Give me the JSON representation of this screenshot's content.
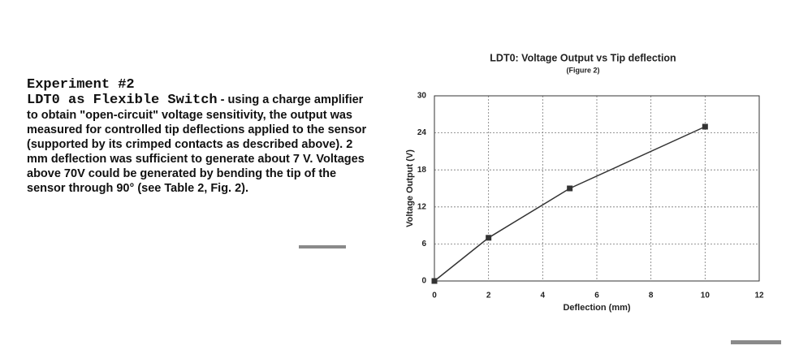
{
  "experiment": {
    "heading": "Experiment #2",
    "subheading": "LDT0 as Flexible Switch",
    "body": " - using a charge amplifier to obtain \"open-circuit\" voltage sensitivity, the output was measured for controlled tip deflections applied to the sensor (supported by its crimped contacts as described above). 2 mm deflection was sufficient to generate about 7 V. Voltages above 70V could be generated by bending the tip of the sensor through 90° (see Table 2, Fig. 2)."
  },
  "chart_data": {
    "type": "line",
    "title": "LDT0: Voltage Output vs Tip deflection",
    "subtitle": "(Figure 2)",
    "x_label": "Deflection (mm)",
    "y_label": "Voltage Output (V)",
    "x": [
      0,
      2,
      5,
      10
    ],
    "values": [
      0,
      7,
      15,
      25
    ],
    "color": "#333333",
    "xlim": [
      0,
      12
    ],
    "xticks": [
      0,
      2,
      4,
      6,
      8,
      10,
      12
    ],
    "ylim": [
      0,
      30
    ],
    "yticks": [
      0,
      6,
      12,
      18,
      24,
      30
    ],
    "grid": true
  }
}
